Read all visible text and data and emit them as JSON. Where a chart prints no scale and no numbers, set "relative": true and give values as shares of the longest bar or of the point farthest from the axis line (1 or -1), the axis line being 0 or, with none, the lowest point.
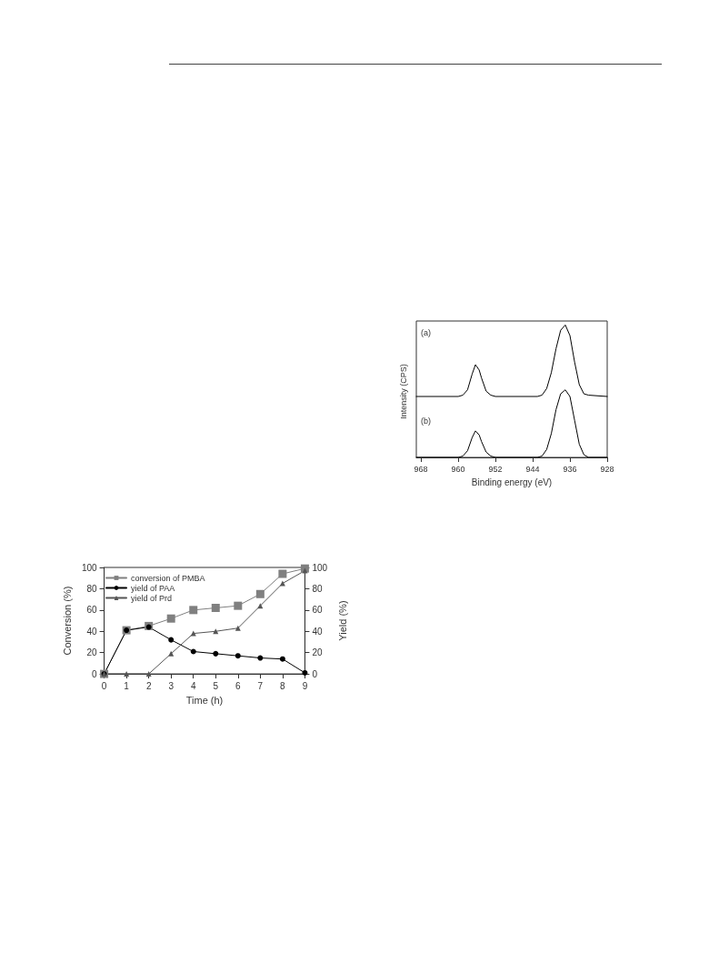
{
  "chart_data": [
    {
      "type": "line",
      "xlabel": "Time (h)",
      "ylabel": "Conversion (%)",
      "y2label": "Yield (%)",
      "x": [
        0,
        1,
        2,
        3,
        4,
        5,
        6,
        7,
        8,
        9
      ],
      "xlim": [
        0,
        9
      ],
      "xticks": [
        0,
        1,
        2,
        3,
        4,
        5,
        6,
        7,
        8,
        9
      ],
      "ylim": [
        0,
        100
      ],
      "yticks": [
        0,
        20,
        40,
        60,
        80,
        100
      ],
      "y2lim": [
        0,
        100
      ],
      "y2ticks": [
        0,
        20,
        40,
        60,
        80,
        100
      ],
      "legend": "top left",
      "series": [
        {
          "name": "conversion of PMBA",
          "color": "#808080",
          "marker": "square",
          "values": [
            0,
            41,
            45,
            52,
            60,
            62,
            64,
            75,
            94,
            99
          ]
        },
        {
          "name": "yield of PAA",
          "color": "#000000",
          "marker": "circle",
          "values": [
            0,
            41,
            44,
            32,
            21,
            19,
            17,
            15,
            14,
            1
          ]
        },
        {
          "name": "yield of Prd",
          "color": "#555555",
          "marker": "triangle",
          "values": [
            0,
            0,
            0,
            19,
            38,
            40,
            43,
            64,
            85,
            97
          ]
        }
      ]
    },
    {
      "type": "line",
      "xlabel": "Binding energy (eV)",
      "ylabel": "Intensity (CPS)",
      "relative": true,
      "annotations": [
        "(a)",
        "(b)"
      ],
      "x": [
        969,
        960,
        959,
        958,
        957,
        956.3,
        955.5,
        955,
        954,
        953,
        952,
        943,
        942,
        941,
        940,
        939,
        938,
        937,
        936,
        935,
        934,
        933,
        932,
        928
      ],
      "xlim": [
        969,
        928
      ],
      "xticks": [
        968,
        960,
        952,
        944,
        936,
        928
      ],
      "series": [
        {
          "color": "#000000",
          "values": [
            0.46,
            0.46,
            0.47,
            0.51,
            0.63,
            0.7,
            0.66,
            0.6,
            0.5,
            0.47,
            0.46,
            0.46,
            0.47,
            0.52,
            0.64,
            0.82,
            0.96,
            1,
            0.92,
            0.72,
            0.55,
            0.48,
            0.47,
            0.46
          ]
        },
        {
          "color": "#000000",
          "values": [
            0,
            0,
            0.01,
            0.05,
            0.15,
            0.2,
            0.17,
            0.12,
            0.04,
            0.01,
            0,
            0,
            0.01,
            0.06,
            0.18,
            0.36,
            0.48,
            0.51,
            0.46,
            0.28,
            0.1,
            0.02,
            0,
            0
          ]
        }
      ]
    }
  ]
}
